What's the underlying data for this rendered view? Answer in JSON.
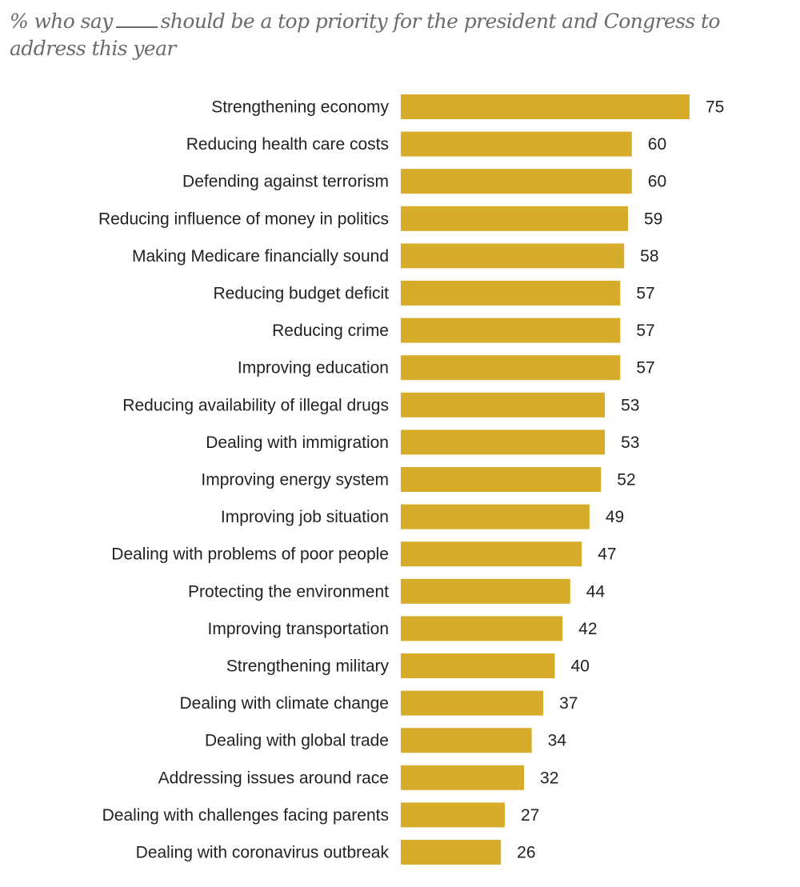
{
  "chart_data": {
    "type": "bar",
    "orientation": "horizontal",
    "title_parts": [
      "% who say",
      "should be a top priority for the president and Congress to address this year"
    ],
    "categories": [
      "Strengthening economy",
      "Reducing health care costs",
      "Defending against terrorism",
      "Reducing influence of money in politics",
      "Making Medicare financially sound",
      "Reducing budget deficit",
      "Reducing crime",
      "Improving education",
      "Reducing availability of illegal drugs",
      "Dealing with immigration",
      "Improving energy system",
      "Improving job situation",
      "Dealing with problems of poor people",
      "Protecting the environment",
      "Improving transportation",
      "Strengthening military",
      "Dealing with climate change",
      "Dealing with global trade",
      "Addressing issues around race",
      "Dealing with challenges facing parents",
      "Dealing with coronavirus outbreak"
    ],
    "values": [
      75,
      60,
      60,
      59,
      58,
      57,
      57,
      57,
      53,
      53,
      52,
      49,
      47,
      44,
      42,
      40,
      37,
      34,
      32,
      27,
      26
    ],
    "xlim": [
      0,
      75
    ],
    "grid": false,
    "legend": "none",
    "bar_color": "#D6AC2A"
  }
}
